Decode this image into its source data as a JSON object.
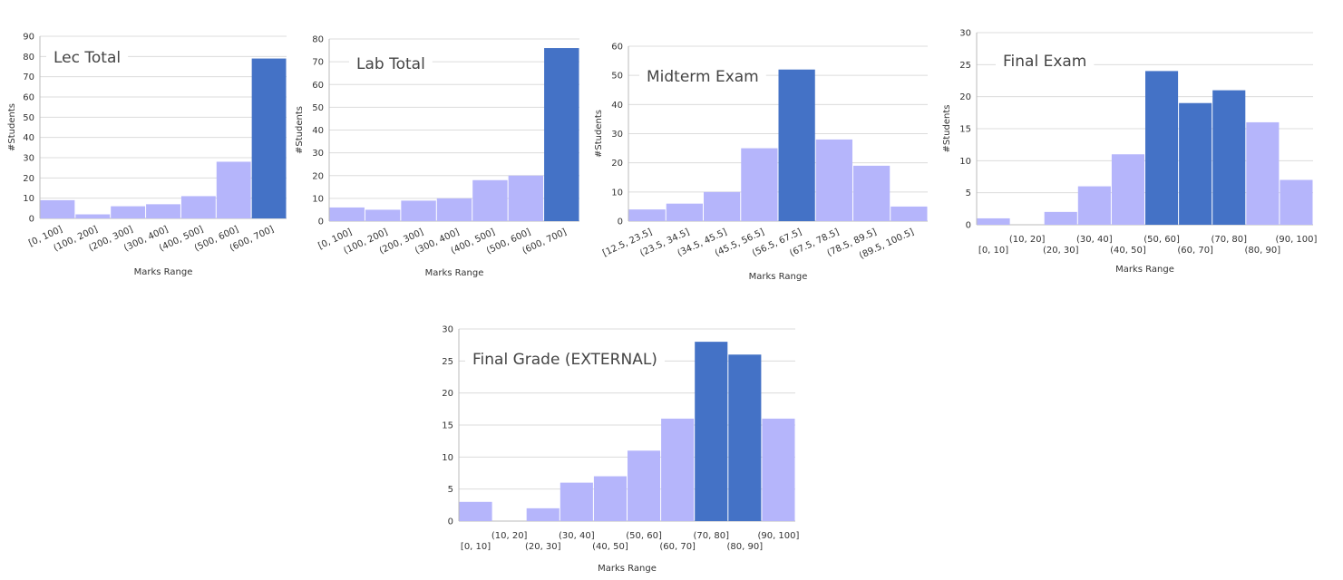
{
  "chart_data": [
    {
      "type": "bar",
      "title": "Lec Total",
      "xlabel": "Marks Range",
      "ylabel": "#Students",
      "ylim": [
        0,
        90
      ],
      "yticks": [
        0,
        10,
        20,
        30,
        40,
        50,
        60,
        70,
        80,
        90
      ],
      "categories": [
        "[0, 100]",
        "(100, 200]",
        "(200, 300]",
        "(300, 400]",
        "(400, 500]",
        "(500, 600]",
        "(600, 700]"
      ],
      "values": [
        9,
        2,
        6,
        7,
        11,
        28,
        79
      ],
      "highlight": [
        false,
        false,
        false,
        false,
        false,
        false,
        true
      ],
      "grid": true,
      "colors": {
        "normal": "#b5b5fb",
        "highlight": "#4472c6"
      }
    },
    {
      "type": "bar",
      "title": "Lab Total",
      "xlabel": "Marks Range",
      "ylabel": "#Students",
      "ylim": [
        0,
        80
      ],
      "yticks": [
        0,
        10,
        20,
        30,
        40,
        50,
        60,
        70,
        80
      ],
      "categories": [
        "[0, 100]",
        "(100, 200]",
        "(200, 300]",
        "(300, 400]",
        "(400, 500]",
        "(500, 600]",
        "(600, 700]"
      ],
      "values": [
        6,
        5,
        9,
        10,
        18,
        20,
        76
      ],
      "highlight": [
        false,
        false,
        false,
        false,
        false,
        false,
        true
      ],
      "grid": true,
      "colors": {
        "normal": "#b5b5fb",
        "highlight": "#4472c6"
      }
    },
    {
      "type": "bar",
      "title": "Midterm Exam",
      "xlabel": "Marks Range",
      "ylabel": "#Students",
      "ylim": [
        0,
        60
      ],
      "yticks": [
        0,
        10,
        20,
        30,
        40,
        50,
        60
      ],
      "categories": [
        "[12.5, 23.5]",
        "(23.5, 34.5]",
        "(34.5, 45.5]",
        "(45.5, 56.5]",
        "(56.5, 67.5]",
        "(67.5, 78.5]",
        "(78.5, 89.5]",
        "(89.5, 100.5]"
      ],
      "values": [
        4,
        6,
        10,
        25,
        52,
        28,
        19,
        5
      ],
      "highlight": [
        false,
        false,
        false,
        false,
        true,
        false,
        false,
        false
      ],
      "grid": true,
      "colors": {
        "normal": "#b5b5fb",
        "highlight": "#4472c6"
      }
    },
    {
      "type": "bar",
      "title": "Final Exam",
      "xlabel": "Marks Range",
      "ylabel": "#Students",
      "ylim": [
        0,
        30
      ],
      "yticks": [
        0,
        5,
        10,
        15,
        20,
        25,
        30
      ],
      "categories": [
        "[0, 10]",
        "(10, 20]",
        "(20, 30]",
        "(30, 40]",
        "(40, 50]",
        "(50, 60]",
        "(60, 70]",
        "(70, 80]",
        "(80, 90]",
        "(90, 100]"
      ],
      "values": [
        1,
        0,
        2,
        6,
        11,
        24,
        19,
        21,
        16,
        7
      ],
      "highlight": [
        false,
        false,
        false,
        false,
        false,
        true,
        true,
        true,
        false,
        false
      ],
      "grid": true,
      "colors": {
        "normal": "#b5b5fb",
        "highlight": "#4472c6"
      }
    },
    {
      "type": "bar",
      "title": "Final Grade (EXTERNAL)",
      "xlabel": "Marks Range",
      "ylabel": "",
      "ylim": [
        0,
        30
      ],
      "yticks": [
        0,
        5,
        10,
        15,
        20,
        25,
        30
      ],
      "categories": [
        "[0, 10]",
        "(10, 20]",
        "(20, 30]",
        "(30, 40]",
        "(40, 50]",
        "(50, 60]",
        "(60, 70]",
        "(70, 80]",
        "(80, 90]",
        "(90, 100]"
      ],
      "values": [
        3,
        0,
        2,
        6,
        7,
        11,
        16,
        28,
        26,
        16
      ],
      "highlight": [
        false,
        false,
        false,
        false,
        false,
        false,
        false,
        true,
        true,
        false
      ],
      "grid": true,
      "colors": {
        "normal": "#b5b5fb",
        "highlight": "#4472c6"
      }
    }
  ]
}
